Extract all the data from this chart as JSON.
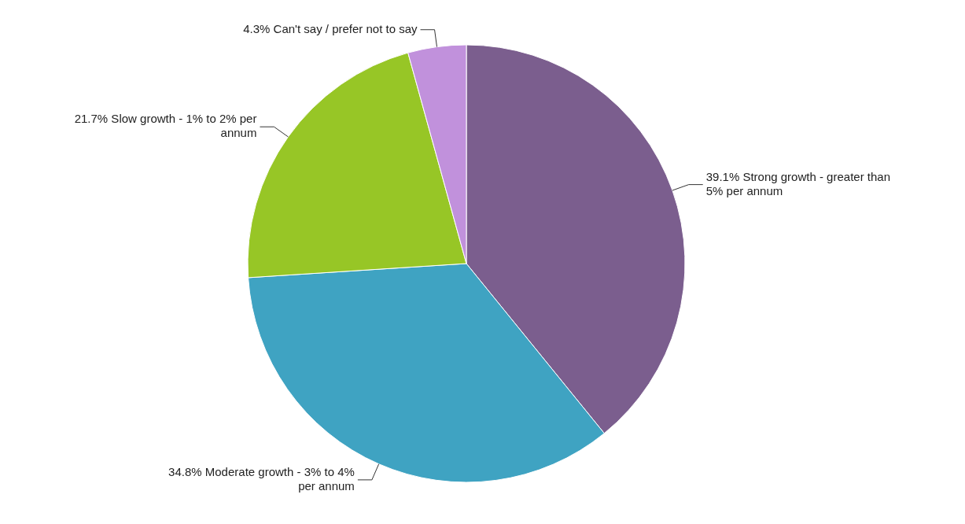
{
  "chart_data": {
    "type": "pie",
    "categories": [
      "Strong growth - greater than 5% per annum",
      "Moderate growth - 3% to 4% per annum",
      "Slow growth - 1% to 2% per annum",
      "Can't say / prefer not to say"
    ],
    "values": [
      39.1,
      34.8,
      21.7,
      4.3
    ],
    "value_labels": [
      "39.1%",
      "34.8%",
      "21.7%",
      "4.3%"
    ],
    "colors": [
      "#7b5e8e",
      "#3fa3c2",
      "#97c626",
      "#c191dc"
    ],
    "legend": false
  }
}
